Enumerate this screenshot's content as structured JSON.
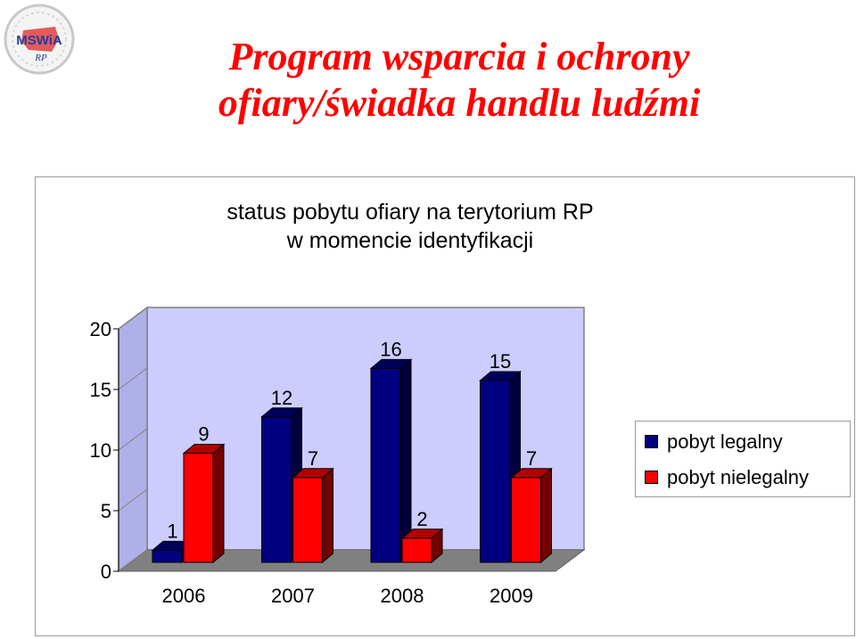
{
  "logo": {
    "text": "MSWiA",
    "subtext": "RP"
  },
  "page_title": {
    "line1": "Program wsparcia i ochrony",
    "line2": "ofiary/świadka handlu ludźmi"
  },
  "colors": {
    "title": "#ff0000",
    "legal": "#000080",
    "illegal": "#ff0000",
    "wall": "#ccccff",
    "floor": "#808080"
  },
  "chart_data": {
    "type": "bar",
    "title": "status pobytu ofiary na terytorium RP w momencie identyfikacji",
    "title_lines": [
      "status pobytu ofiary na terytorium RP",
      "w momencie identyfikacji"
    ],
    "categories": [
      "2006",
      "2007",
      "2008",
      "2009"
    ],
    "series": [
      {
        "name": "pobyt legalny",
        "values": [
          1,
          12,
          16,
          15
        ],
        "color": "#000080"
      },
      {
        "name": "pobyt nielegalny",
        "values": [
          9,
          7,
          2,
          7
        ],
        "color": "#ff0000"
      }
    ],
    "ylim": [
      0,
      20
    ],
    "yticks": [
      "0",
      "5",
      "10",
      "15",
      "20"
    ],
    "xlabel": "",
    "ylabel": "",
    "grid": false,
    "legend": "right",
    "three_d": true
  }
}
